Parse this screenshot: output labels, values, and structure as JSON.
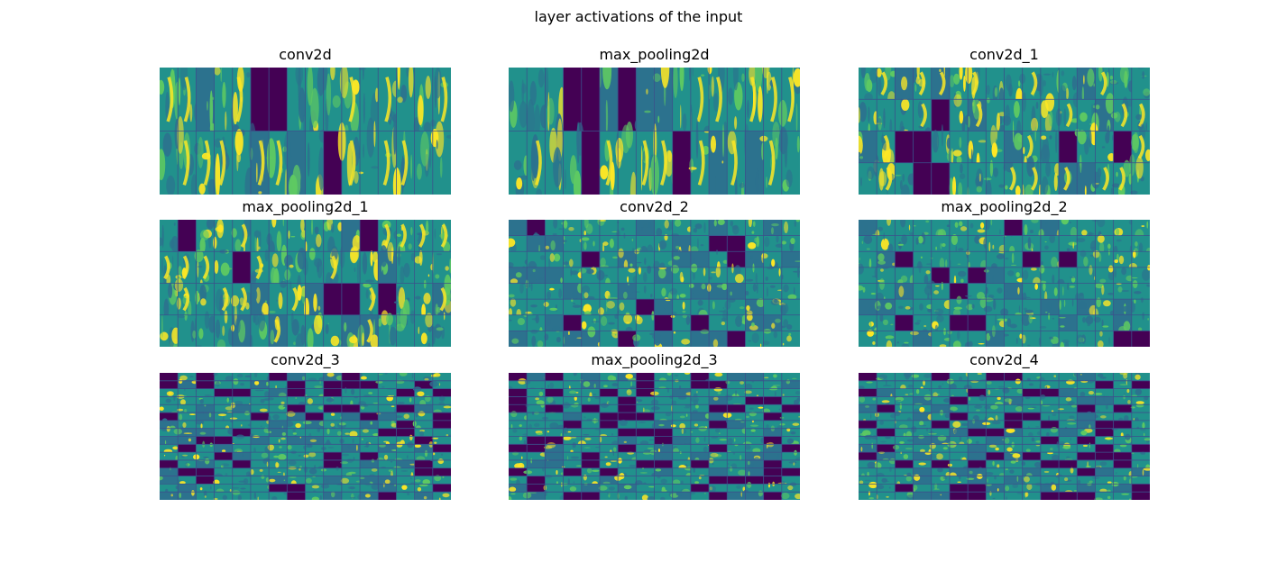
{
  "figure": {
    "title": "layer activations of the input"
  },
  "colors": {
    "colormap": "viridis",
    "dark": "#440154",
    "mid": "#21918c",
    "mid_dark": "#2c728e",
    "bright": "#fde725",
    "light_green": "#5ec962",
    "grid_line": "#3b528b"
  },
  "chart_data": [
    {
      "type": "heatmap",
      "title": "conv2d",
      "grid": {
        "rows": 2,
        "cols": 16
      },
      "texture": "feature-maps"
    },
    {
      "type": "heatmap",
      "title": "max_pooling2d",
      "grid": {
        "rows": 2,
        "cols": 16
      },
      "texture": "feature-maps"
    },
    {
      "type": "heatmap",
      "title": "conv2d_1",
      "grid": {
        "rows": 4,
        "cols": 16
      },
      "texture": "feature-maps"
    },
    {
      "type": "heatmap",
      "title": "max_pooling2d_1",
      "grid": {
        "rows": 4,
        "cols": 16
      },
      "texture": "feature-maps"
    },
    {
      "type": "heatmap",
      "title": "conv2d_2",
      "grid": {
        "rows": 8,
        "cols": 16
      },
      "texture": "feature-maps"
    },
    {
      "type": "heatmap",
      "title": "max_pooling2d_2",
      "grid": {
        "rows": 8,
        "cols": 16
      },
      "texture": "feature-maps"
    },
    {
      "type": "heatmap",
      "title": "conv2d_3",
      "grid": {
        "rows": 16,
        "cols": 16
      },
      "texture": "feature-maps"
    },
    {
      "type": "heatmap",
      "title": "max_pooling2d_3",
      "grid": {
        "rows": 16,
        "cols": 16
      },
      "texture": "feature-maps"
    },
    {
      "type": "heatmap",
      "title": "conv2d_4",
      "grid": {
        "rows": 16,
        "cols": 16
      },
      "texture": "feature-maps"
    }
  ]
}
